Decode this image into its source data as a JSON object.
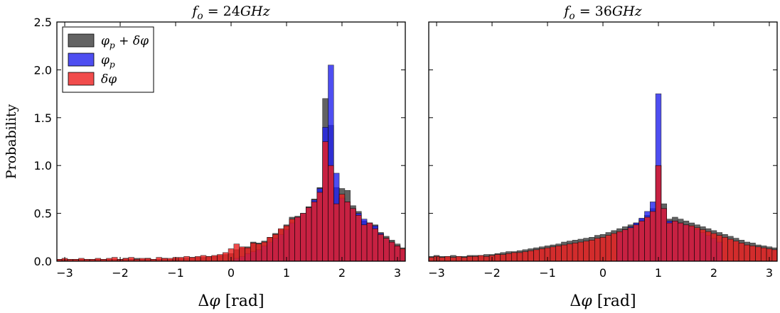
{
  "chart_data": [
    {
      "type": "bar",
      "title": "f_o = 24GHz",
      "xlabel": "Δφ [rad]",
      "ylabel": "Probability",
      "xlim": [
        -3.14159,
        3.14159
      ],
      "ylim": [
        0,
        2.5
      ],
      "xticks": [
        -3,
        -2,
        -1,
        0,
        1,
        2,
        3
      ],
      "xtick_labels": [
        "−3",
        "−2",
        "−1",
        "0",
        "1",
        "2",
        "3"
      ],
      "yticks": [
        0,
        0.5,
        1.0,
        1.5,
        2.0,
        2.5
      ],
      "ytick_labels": [
        "0.0",
        "0.5",
        "1.0",
        "1.5",
        "2.0",
        "2.5"
      ],
      "bin_width": 0.1,
      "bin_start": -3.15,
      "legend": {
        "position": "top-left",
        "entries": [
          "φ_p + δφ",
          "φ_p",
          "δφ"
        ]
      },
      "series": [
        {
          "name": "φ_p + δφ",
          "color": "#3c3c3c",
          "values": [
            0.02,
            0.02,
            0.02,
            0.02,
            0.02,
            0.02,
            0.02,
            0.02,
            0.02,
            0.02,
            0.02,
            0.02,
            0.03,
            0.02,
            0.03,
            0.02,
            0.03,
            0.02,
            0.02,
            0.03,
            0.02,
            0.03,
            0.03,
            0.03,
            0.04,
            0.04,
            0.04,
            0.05,
            0.05,
            0.06,
            0.07,
            0.08,
            0.12,
            0.14,
            0.15,
            0.2,
            0.19,
            0.21,
            0.25,
            0.29,
            0.33,
            0.38,
            0.46,
            0.47,
            0.5,
            0.57,
            0.65,
            0.77,
            1.7,
            1.42,
            0.77,
            0.76,
            0.74,
            0.58,
            0.52,
            0.42,
            0.4,
            0.38,
            0.3,
            0.26,
            0.22,
            0.18,
            0.14,
            0.13,
            0.11,
            0.09,
            0.08,
            0.07,
            0.06,
            0.05,
            0.05,
            0.04,
            0.04,
            0.03,
            0.03,
            0.03,
            0.02,
            0.02,
            0.02,
            0.02,
            0.02,
            0.02,
            0.02,
            0.02,
            0.02,
            0.02,
            0.02,
            0.02,
            0.02,
            0.02,
            0.02,
            0.02,
            0.02,
            0.02,
            0.02,
            0.02,
            0.02,
            0.02,
            0.02,
            0.02,
            0.02,
            0.02,
            0.02,
            0.02,
            0.02,
            0.02,
            0.02,
            0.02,
            0.02,
            0.02,
            0.02,
            0.02,
            0.02
          ]
        },
        {
          "name": "φ_p",
          "color": "#2222ee",
          "values": [
            0,
            0,
            0,
            0,
            0,
            0,
            0,
            0,
            0,
            0,
            0,
            0,
            0,
            0,
            0,
            0,
            0,
            0,
            0,
            0,
            0,
            0,
            0,
            0,
            0,
            0,
            0,
            0,
            0,
            0,
            0,
            0,
            0.03,
            0.05,
            0.08,
            0.1,
            0.12,
            0.16,
            0.2,
            0.24,
            0.28,
            0.33,
            0.4,
            0.46,
            0.5,
            0.56,
            0.64,
            0.76,
            1.4,
            2.05,
            0.92,
            0.66,
            0.62,
            0.55,
            0.5,
            0.44,
            0.4,
            0.37,
            0.29,
            0.24,
            0.2,
            0.16,
            0.12,
            0.1,
            0.07,
            0.05,
            0.03,
            0,
            0,
            0,
            0,
            0,
            0,
            0,
            0,
            0,
            0,
            0,
            0,
            0,
            0,
            0,
            0,
            0,
            0,
            0,
            0,
            0,
            0,
            0,
            0,
            0,
            0,
            0,
            0,
            0,
            0,
            0,
            0,
            0,
            0,
            0,
            0,
            0,
            0,
            0,
            0,
            0,
            0,
            0,
            0,
            0,
            0
          ]
        },
        {
          "name": "δφ",
          "color": "#ee1f1f",
          "values": [
            0.02,
            0.03,
            0.02,
            0.02,
            0.03,
            0.02,
            0.02,
            0.03,
            0.02,
            0.03,
            0.04,
            0.02,
            0.03,
            0.04,
            0.02,
            0.03,
            0.03,
            0.02,
            0.04,
            0.03,
            0.03,
            0.04,
            0.04,
            0.05,
            0.04,
            0.05,
            0.06,
            0.05,
            0.06,
            0.07,
            0.09,
            0.13,
            0.18,
            0.15,
            0.14,
            0.19,
            0.18,
            0.2,
            0.25,
            0.28,
            0.34,
            0.37,
            0.44,
            0.46,
            0.5,
            0.56,
            0.62,
            0.72,
            1.25,
            1.0,
            0.6,
            0.7,
            0.62,
            0.55,
            0.48,
            0.38,
            0.4,
            0.34,
            0.28,
            0.24,
            0.2,
            0.16,
            0.13,
            0.11,
            0.09,
            0.08,
            0.07,
            0.06,
            0.05,
            0.04,
            0.06,
            0.03,
            0.04,
            0.03,
            0.02,
            0.03,
            0.02,
            0.03,
            0.02,
            0.02,
            0.02,
            0.02,
            0.02,
            0.02,
            0.03,
            0.02,
            0.02,
            0.02,
            0.02,
            0.02,
            0.02,
            0.02,
            0.02,
            0.02,
            0.02,
            0.02,
            0.02,
            0.02,
            0.02,
            0.02,
            0.02,
            0.02,
            0.02,
            0.02,
            0.02,
            0.02,
            0.02,
            0.02,
            0.02,
            0.02,
            0.02,
            0.02,
            0.02
          ]
        }
      ]
    },
    {
      "type": "bar",
      "title": "f_o = 36GHz",
      "xlabel": "Δφ [rad]",
      "ylabel": "",
      "xlim": [
        -3.14159,
        3.14159
      ],
      "ylim": [
        0,
        2.5
      ],
      "xticks": [
        -3,
        -2,
        -1,
        0,
        1,
        2,
        3
      ],
      "xtick_labels": [
        "−3",
        "−2",
        "−1",
        "0",
        "1",
        "2",
        "3"
      ],
      "yticks": [
        0,
        0.5,
        1.0,
        1.5,
        2.0,
        2.5
      ],
      "ytick_labels": [],
      "bin_width": 0.1,
      "bin_start": -3.15,
      "series": [
        {
          "name": "φ_p + δφ",
          "color": "#3c3c3c",
          "values": [
            0.05,
            0.06,
            0.05,
            0.05,
            0.06,
            0.05,
            0.05,
            0.06,
            0.06,
            0.06,
            0.07,
            0.07,
            0.08,
            0.09,
            0.1,
            0.1,
            0.11,
            0.12,
            0.13,
            0.14,
            0.15,
            0.16,
            0.17,
            0.18,
            0.2,
            0.21,
            0.22,
            0.23,
            0.24,
            0.25,
            0.27,
            0.28,
            0.3,
            0.32,
            0.34,
            0.36,
            0.38,
            0.4,
            0.44,
            0.48,
            0.55,
            1.0,
            0.6,
            0.44,
            0.46,
            0.44,
            0.42,
            0.4,
            0.38,
            0.36,
            0.34,
            0.32,
            0.3,
            0.28,
            0.26,
            0.24,
            0.22,
            0.2,
            0.19,
            0.17,
            0.16,
            0.15,
            0.14,
            0.12,
            0.11,
            0.1,
            0.1,
            0.09,
            0.08,
            0.07,
            0.07,
            0.06,
            0.06,
            0.06,
            0.05,
            0.05,
            0.05,
            0.05,
            0.05,
            0.05,
            0.05,
            0.05,
            0.05,
            0.05,
            0.05,
            0.05,
            0.05,
            0.05,
            0.05,
            0.05,
            0.05,
            0.05,
            0.05,
            0.05,
            0.05,
            0.05,
            0.05,
            0.05,
            0.05,
            0.05,
            0.05,
            0.05,
            0.05,
            0.05,
            0.05,
            0.05,
            0.05,
            0.05,
            0.05,
            0.05,
            0.05,
            0.05,
            0.05
          ]
        },
        {
          "name": "φ_p",
          "color": "#2222ee",
          "values": [
            0,
            0,
            0,
            0,
            0,
            0,
            0,
            0,
            0,
            0,
            0,
            0,
            0,
            0,
            0,
            0,
            0,
            0,
            0,
            0,
            0,
            0,
            0,
            0,
            0,
            0,
            0,
            0,
            0,
            0,
            0,
            0,
            0,
            0,
            0.3,
            0.33,
            0.36,
            0.4,
            0.45,
            0.52,
            0.62,
            1.75,
            0.55,
            0.42,
            0.42,
            0.4,
            0.38,
            0.36,
            0.33,
            0.3,
            0.27,
            0.24,
            0.2,
            0,
            0,
            0,
            0,
            0,
            0,
            0,
            0,
            0,
            0,
            0,
            0,
            0,
            0,
            0,
            0,
            0,
            0,
            0,
            0,
            0,
            0,
            0,
            0,
            0,
            0,
            0,
            0,
            0,
            0,
            0,
            0,
            0,
            0,
            0,
            0,
            0,
            0,
            0,
            0,
            0,
            0,
            0,
            0,
            0,
            0,
            0,
            0,
            0,
            0,
            0,
            0,
            0,
            0,
            0,
            0,
            0,
            0,
            0,
            0,
            0,
            0
          ]
        },
        {
          "name": "δφ",
          "color": "#ee1f1f",
          "values": [
            0.04,
            0.05,
            0.04,
            0.05,
            0.04,
            0.05,
            0.04,
            0.05,
            0.05,
            0.06,
            0.05,
            0.06,
            0.07,
            0.07,
            0.08,
            0.09,
            0.09,
            0.1,
            0.11,
            0.12,
            0.13,
            0.14,
            0.15,
            0.16,
            0.17,
            0.18,
            0.19,
            0.2,
            0.21,
            0.22,
            0.24,
            0.25,
            0.27,
            0.29,
            0.31,
            0.33,
            0.35,
            0.38,
            0.42,
            0.46,
            0.52,
            1.0,
            0.55,
            0.4,
            0.42,
            0.4,
            0.38,
            0.37,
            0.35,
            0.33,
            0.31,
            0.29,
            0.27,
            0.25,
            0.23,
            0.21,
            0.19,
            0.17,
            0.16,
            0.15,
            0.14,
            0.13,
            0.12,
            0.11,
            0.1,
            0.09,
            0.09,
            0.08,
            0.07,
            0.07,
            0.06,
            0.06,
            0.05,
            0.05,
            0.05,
            0.04,
            0.04,
            0.04,
            0.04,
            0.04,
            0.04,
            0.04,
            0.04,
            0.04,
            0.04,
            0.04,
            0.04,
            0.04,
            0.04,
            0.04,
            0.04,
            0.04,
            0.04,
            0.04,
            0.04,
            0.04,
            0.04,
            0.04,
            0.04,
            0.04,
            0.04,
            0.04,
            0.04,
            0.04,
            0.04,
            0.04,
            0.04,
            0.04,
            0.04,
            0.04,
            0.04,
            0.04,
            0.04
          ]
        }
      ]
    }
  ]
}
